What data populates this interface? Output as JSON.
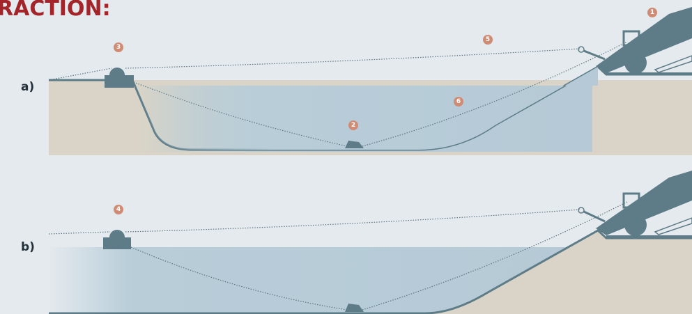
{
  "title": "RACTION:",
  "panels": [
    {
      "label": "a)"
    },
    {
      "label": "b)"
    }
  ],
  "markers": [
    "1",
    "2",
    "3",
    "4",
    "5",
    "6"
  ]
}
